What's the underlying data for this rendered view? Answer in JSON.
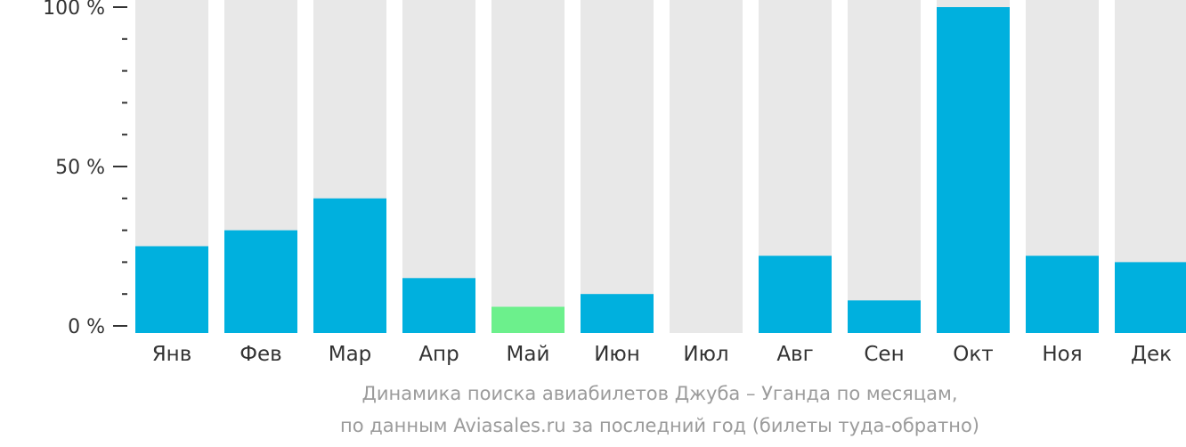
{
  "chart_data": {
    "type": "bar",
    "categories": [
      "Янв",
      "Фев",
      "Мар",
      "Апр",
      "Май",
      "Июн",
      "Июл",
      "Авг",
      "Сен",
      "Окт",
      "Ноя",
      "Дек"
    ],
    "values": [
      25,
      30,
      40,
      15,
      6,
      10,
      0,
      22,
      8,
      100,
      22,
      20
    ],
    "highlight_index": 4,
    "ylim": [
      0,
      100
    ],
    "y_ticks": [
      {
        "value": 0,
        "label": "0 %"
      },
      {
        "value": 50,
        "label": "50 %"
      },
      {
        "value": 100,
        "label": "100 %"
      }
    ],
    "y_minor_step": 10,
    "colors": {
      "bar": "#00b0de",
      "highlight": "#6cf08c",
      "background_bar": "#e8e8e8",
      "axis": "#333333",
      "text": "#333333"
    }
  },
  "caption": {
    "line1": "Динамика поиска авиабилетов Джуба – Уганда по месяцам,",
    "line2": "по данным Aviasales.ru за последний год (билеты туда-обратно)"
  }
}
